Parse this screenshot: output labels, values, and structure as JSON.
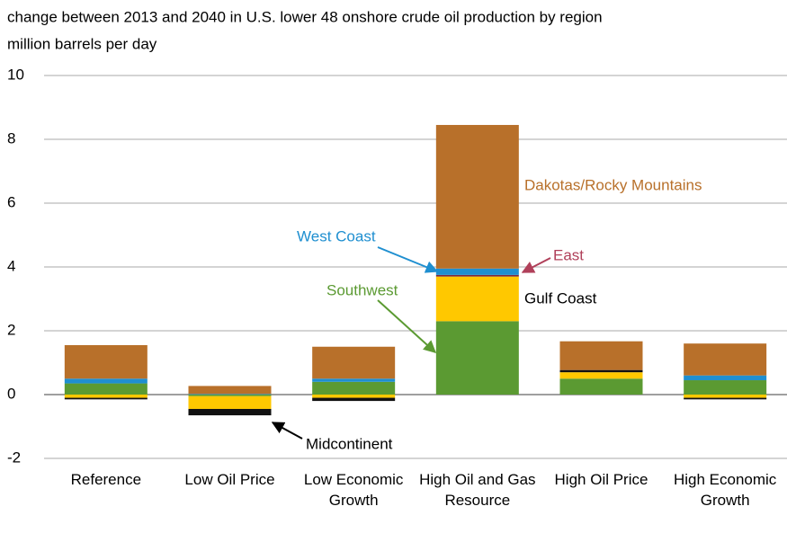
{
  "chart_data": {
    "type": "bar",
    "stacked": true,
    "title": "change between 2013 and 2040 in U.S. lower 48 onshore crude oil production by region",
    "subtitle": "million barrels per day",
    "categories": [
      "Reference",
      "Low Oil Price",
      "Low Economic Growth",
      "High Oil and Gas Resource",
      "High Oil Price",
      "High Economic Growth"
    ],
    "series": [
      {
        "name": "Southwest",
        "color": "#5b9a32",
        "values": [
          0.35,
          -0.05,
          0.4,
          2.3,
          0.5,
          0.45
        ]
      },
      {
        "name": "Gulf Coast",
        "color": "#ffc800",
        "values": [
          -0.1,
          -0.4,
          -0.1,
          1.4,
          0.2,
          -0.1
        ]
      },
      {
        "name": "Midcontinent",
        "color": "#111111",
        "values": [
          -0.05,
          -0.2,
          -0.1,
          0,
          0.07,
          -0.05
        ]
      },
      {
        "name": "East",
        "color": "#7a2a40",
        "values": [
          0,
          0,
          0,
          0.05,
          0,
          0
        ]
      },
      {
        "name": "West Coast",
        "color": "#1f8fd0",
        "values": [
          0.15,
          0.02,
          0.1,
          0.2,
          0,
          0.15
        ]
      },
      {
        "name": "Dakotas/Rocky Mountains",
        "color": "#b8702a",
        "values": [
          1.05,
          0.25,
          1.0,
          4.5,
          0.9,
          1.0
        ]
      }
    ],
    "ylim": [
      -2,
      10
    ],
    "yticks": [
      -2,
      0,
      2,
      4,
      6,
      8,
      10
    ],
    "grid": true
  }
}
